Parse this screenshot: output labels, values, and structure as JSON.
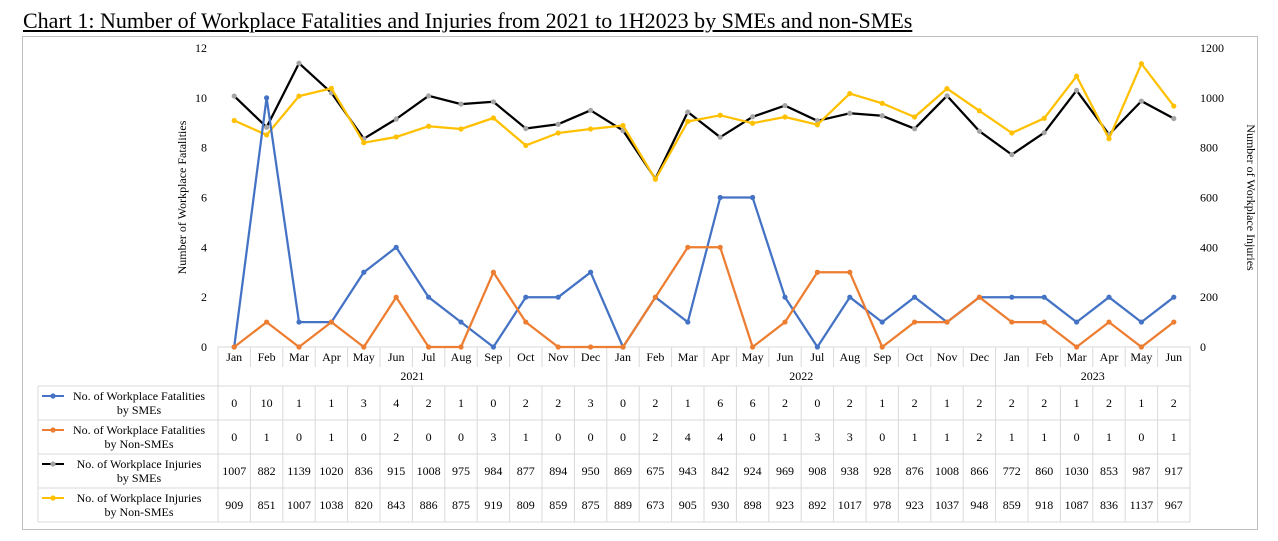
{
  "chart_data": {
    "type": "line",
    "title": "Chart 1: Number of Workplace Fatalities and Injuries from 2021 to 1H2023 by SMEs and non-SMEs",
    "ylabel_left": "Number of Workplace Fatalities",
    "ylabel_right": "Number of Workplace Injuries",
    "ylim_left": [
      0,
      12
    ],
    "yticks_left": [
      "0",
      "2",
      "4",
      "6",
      "8",
      "10",
      "12"
    ],
    "ylim_right": [
      0,
      1200
    ],
    "yticks_right": [
      "0",
      "200",
      "400",
      "600",
      "800",
      "1000",
      "1200"
    ],
    "grid": false,
    "legend": "data-table",
    "categories": [
      "Jan",
      "Feb",
      "Mar",
      "Apr",
      "May",
      "Jun",
      "Jul",
      "Aug",
      "Sep",
      "Oct",
      "Nov",
      "Dec",
      "Jan",
      "Feb",
      "Mar",
      "Apr",
      "May",
      "Jun",
      "Jul",
      "Aug",
      "Sep",
      "Oct",
      "Nov",
      "Dec",
      "Jan",
      "Feb",
      "Mar",
      "Apr",
      "May",
      "Jun"
    ],
    "years": [
      {
        "label": "2021",
        "count": 12
      },
      {
        "label": "2022",
        "count": 12
      },
      {
        "label": "2023",
        "count": 6
      }
    ],
    "series": [
      {
        "name": "No. of Workplace Fatalities by SMEs",
        "axis": "left",
        "color": "#4472c4",
        "marker_color": "#4472c4",
        "values": [
          0,
          10,
          1,
          1,
          3,
          4,
          2,
          1,
          0,
          2,
          2,
          3,
          0,
          2,
          1,
          6,
          6,
          2,
          0,
          2,
          1,
          2,
          1,
          2,
          2,
          2,
          1,
          2,
          1,
          2
        ]
      },
      {
        "name": "No. of Workplace Fatalities by Non-SMEs",
        "axis": "left",
        "color": "#ed7d31",
        "marker_color": "#ed7d31",
        "values": [
          0,
          1,
          0,
          1,
          0,
          2,
          0,
          0,
          3,
          1,
          0,
          0,
          0,
          2,
          4,
          4,
          0,
          1,
          3,
          3,
          0,
          1,
          1,
          2,
          1,
          1,
          0,
          1,
          0,
          1
        ]
      },
      {
        "name": "No. of Workplace Injuries by SMEs",
        "axis": "right",
        "color": "#000000",
        "marker_color": "#a5a5a5",
        "values": [
          1007,
          882,
          1139,
          1020,
          836,
          915,
          1008,
          975,
          984,
          877,
          894,
          950,
          869,
          675,
          943,
          842,
          924,
          969,
          908,
          938,
          928,
          876,
          1008,
          866,
          772,
          860,
          1030,
          853,
          987,
          917
        ]
      },
      {
        "name": "No. of Workplace Injuries by Non-SMEs",
        "axis": "right",
        "color": "#ffc000",
        "marker_color": "#ffc000",
        "values": [
          909,
          851,
          1007,
          1038,
          820,
          843,
          886,
          875,
          919,
          809,
          859,
          875,
          889,
          673,
          905,
          930,
          898,
          923,
          892,
          1017,
          978,
          923,
          1037,
          948,
          859,
          918,
          1087,
          836,
          1137,
          967
        ]
      }
    ],
    "table_rows": [
      {
        "label": [
          "No. of Workplace Fatalities",
          "by SMEs"
        ],
        "values": [
          "0",
          "10",
          "1",
          "1",
          "3",
          "4",
          "2",
          "1",
          "0",
          "2",
          "2",
          "3",
          "0",
          "2",
          "1",
          "6",
          "6",
          "2",
          "0",
          "2",
          "1",
          "2",
          "1",
          "2",
          "2",
          "2",
          "1",
          "2",
          "1",
          "2"
        ]
      },
      {
        "label": [
          "No. of Workplace Fatalities",
          "by Non-SMEs"
        ],
        "values": [
          "0",
          "1",
          "0",
          "1",
          "0",
          "2",
          "0",
          "0",
          "3",
          "1",
          "0",
          "0",
          "0",
          "2",
          "4",
          "4",
          "0",
          "1",
          "3",
          "3",
          "0",
          "1",
          "1",
          "2",
          "1",
          "1",
          "0",
          "1",
          "0",
          "1"
        ]
      },
      {
        "label": [
          "No. of Workplace Injuries",
          "by SMEs"
        ],
        "values": [
          "1007",
          "882",
          "1139",
          "1020",
          "836",
          "915",
          "1008",
          "975",
          "984",
          "877",
          "894",
          "950",
          "869",
          "675",
          "943",
          "842",
          "924",
          "969",
          "908",
          "938",
          "928",
          "876",
          "1008",
          "866",
          "772",
          "860",
          "1030",
          "853",
          "987",
          "917"
        ]
      },
      {
        "label": [
          "No. of Workplace Injuries",
          "by Non-SMEs"
        ],
        "values": [
          "909",
          "851",
          "1007",
          "1038",
          "820",
          "843",
          "886",
          "875",
          "919",
          "809",
          "859",
          "875",
          "889",
          "673",
          "905",
          "930",
          "898",
          "923",
          "892",
          "1017",
          "978",
          "923",
          "1037",
          "948",
          "859",
          "918",
          "1087",
          "836",
          "1137",
          "967"
        ]
      }
    ]
  }
}
